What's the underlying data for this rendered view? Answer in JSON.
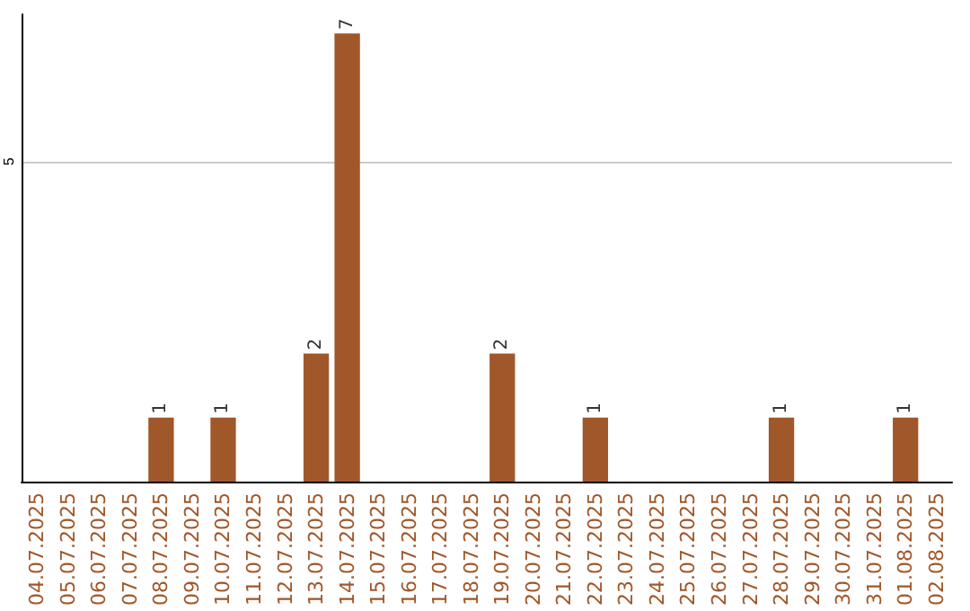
{
  "chart_data": {
    "type": "bar",
    "categories": [
      "04.07.2025",
      "05.07.2025",
      "06.07.2025",
      "07.07.2025",
      "08.07.2025",
      "09.07.2025",
      "10.07.2025",
      "11.07.2025",
      "12.07.2025",
      "13.07.2025",
      "14.07.2025",
      "15.07.2025",
      "16.07.2025",
      "17.07.2025",
      "18.07.2025",
      "19.07.2025",
      "20.07.2025",
      "21.07.2025",
      "22.07.2025",
      "23.07.2025",
      "24.07.2025",
      "25.07.2025",
      "26.07.2025",
      "27.07.2025",
      "28.07.2025",
      "29.07.2025",
      "30.07.2025",
      "31.07.2025",
      "01.08.2025",
      "02.08.2025"
    ],
    "values": [
      0,
      0,
      0,
      0,
      1,
      0,
      1,
      0,
      0,
      2,
      7,
      0,
      0,
      0,
      0,
      2,
      0,
      0,
      1,
      0,
      0,
      0,
      0,
      0,
      1,
      0,
      0,
      0,
      1,
      0
    ],
    "value_labels": [
      null,
      null,
      null,
      null,
      "1",
      null,
      "1",
      null,
      null,
      "2",
      "7",
      null,
      null,
      null,
      null,
      "2",
      null,
      null,
      "1",
      null,
      null,
      null,
      null,
      null,
      "1",
      null,
      null,
      null,
      "1",
      null
    ],
    "color": "#a0572a",
    "ylim": [
      0,
      7.3
    ],
    "yticks": [
      5
    ],
    "grid": "y"
  }
}
